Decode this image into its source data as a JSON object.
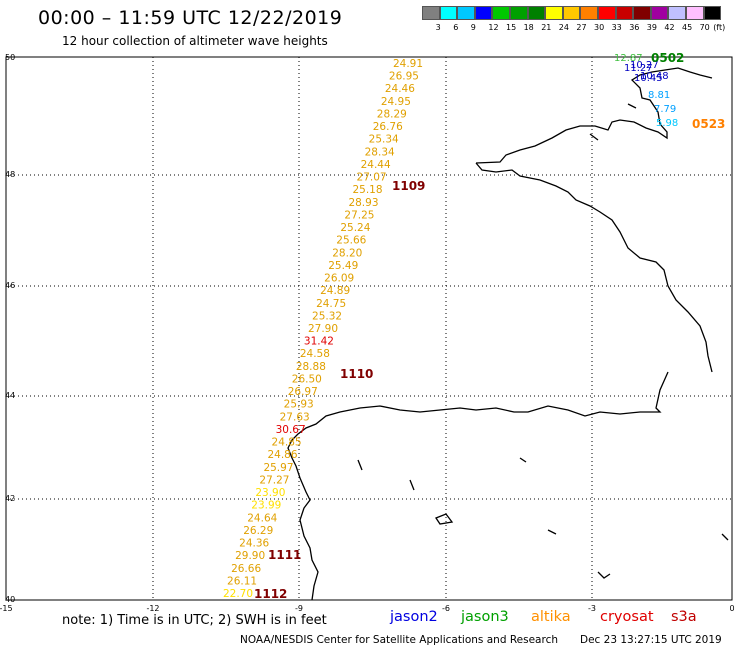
{
  "header": {
    "title": "00:00 – 11:59 UTC 12/22/2019",
    "subtitle": "12 hour collection of altimeter wave heights"
  },
  "legend": {
    "colors": [
      "#808080",
      "#00ffff",
      "#00c8ff",
      "#0000ff",
      "#00c800",
      "#00a000",
      "#008000",
      "#ffff00",
      "#ffc800",
      "#ff8000",
      "#ff0000",
      "#c80000",
      "#800000",
      "#a000a0",
      "#c0c0ff",
      "#ffc0ff",
      "#000000"
    ],
    "labels": [
      "3",
      "6",
      "9",
      "12",
      "15",
      "18",
      "21",
      "24",
      "27",
      "30",
      "33",
      "36",
      "39",
      "42",
      "45",
      "70",
      "(ft)"
    ]
  },
  "axes": {
    "lon_labels": [
      "-15",
      "-12",
      "-9",
      "-6",
      "-3",
      "0"
    ],
    "lat_labels": [
      "50",
      "48",
      "46",
      "44",
      "42",
      "40"
    ]
  },
  "tracks": [
    {
      "id": "1109",
      "color": "#800000",
      "points": [
        {
          "v": "24.91",
          "c": "#e0a000"
        },
        {
          "v": "26.95",
          "c": "#e0a000"
        },
        {
          "v": "24.46",
          "c": "#e0a000"
        },
        {
          "v": "24.95",
          "c": "#e0a000"
        },
        {
          "v": "28.29",
          "c": "#e0a000"
        },
        {
          "v": "26.76",
          "c": "#e0a000"
        },
        {
          "v": "25.34",
          "c": "#e0a000"
        },
        {
          "v": "28.34",
          "c": "#e0a000"
        },
        {
          "v": "24.44",
          "c": "#e0a000"
        },
        {
          "v": "27.07",
          "c": "#e0a000"
        },
        {
          "v": "25.18",
          "c": "#e0a000"
        },
        {
          "v": "28.93",
          "c": "#e0a000"
        },
        {
          "v": "27.25",
          "c": "#e0a000"
        },
        {
          "v": "25.24",
          "c": "#e0a000"
        },
        {
          "v": "25.66",
          "c": "#e0a000"
        },
        {
          "v": "28.20",
          "c": "#e0a000"
        },
        {
          "v": "25.49",
          "c": "#e0a000"
        },
        {
          "v": "26.09",
          "c": "#e0a000"
        },
        {
          "v": "24.89",
          "c": "#e0a000"
        },
        {
          "v": "24.75",
          "c": "#e0a000"
        },
        {
          "v": "25.32",
          "c": "#e0a000"
        }
      ]
    },
    {
      "id": "1110",
      "color": "#800000",
      "points": [
        {
          "v": "27.90",
          "c": "#e0a000"
        },
        {
          "v": "31.42",
          "c": "#e00000"
        },
        {
          "v": "24.58",
          "c": "#e0a000"
        },
        {
          "v": "28.88",
          "c": "#e0a000"
        },
        {
          "v": "26.50",
          "c": "#e0a000"
        },
        {
          "v": "26.97",
          "c": "#e0a000"
        },
        {
          "v": "25.93",
          "c": "#e0a000"
        },
        {
          "v": "27.63",
          "c": "#e0a000"
        },
        {
          "v": "30.67",
          "c": "#e00000"
        },
        {
          "v": "24.85",
          "c": "#e0a000"
        },
        {
          "v": "24.86",
          "c": "#e0a000"
        },
        {
          "v": "25.97",
          "c": "#e0a000"
        }
      ]
    },
    {
      "id": "1111",
      "color": "#800000",
      "points": [
        {
          "v": "27.27",
          "c": "#e0a000"
        },
        {
          "v": "23.90",
          "c": "#ffe000"
        },
        {
          "v": "23.99",
          "c": "#ffe000"
        },
        {
          "v": "24.64",
          "c": "#e0a000"
        },
        {
          "v": "26.29",
          "c": "#e0a000"
        },
        {
          "v": "24.36",
          "c": "#e0a000"
        },
        {
          "v": "29.90",
          "c": "#e0a000"
        }
      ]
    },
    {
      "id": "1112",
      "color": "#800000",
      "points": [
        {
          "v": "26.66",
          "c": "#e0a000"
        },
        {
          "v": "26.11",
          "c": "#e0a000"
        },
        {
          "v": "22.70",
          "c": "#ffe000"
        }
      ]
    }
  ],
  "north_cluster": {
    "id_a": "0502",
    "id_a_color": "#008000",
    "id_b": "0523",
    "id_b_color": "#ff8000",
    "points": [
      {
        "v": "12.87",
        "c": "#40c040"
      },
      {
        "v": "11.27",
        "c": "#0000c0"
      },
      {
        "v": "10.27",
        "c": "#0000c0"
      },
      {
        "v": "10.45",
        "c": "#0000c0"
      },
      {
        "v": "10.48",
        "c": "#0000c0"
      },
      {
        "v": "8.81",
        "c": "#00a0ff"
      },
      {
        "v": "7.79",
        "c": "#00a0ff"
      },
      {
        "v": "5.98",
        "c": "#00c8ff"
      }
    ]
  },
  "footer": {
    "note": "note:  1) Time is in UTC;  2) SWH is in feet",
    "instruments": [
      {
        "name": "jason2",
        "color": "#0000e0"
      },
      {
        "name": "jason3",
        "color": "#00a000"
      },
      {
        "name": "altika",
        "color": "#ff9000"
      },
      {
        "name": "cryosat",
        "color": "#e00000"
      },
      {
        "name": "s3a",
        "color": "#c00000"
      }
    ],
    "credit": "NOAA/NESDIS Center for Satellite Applications and Research",
    "timestamp": "Dec 23 13:27:15 UTC 2019"
  }
}
